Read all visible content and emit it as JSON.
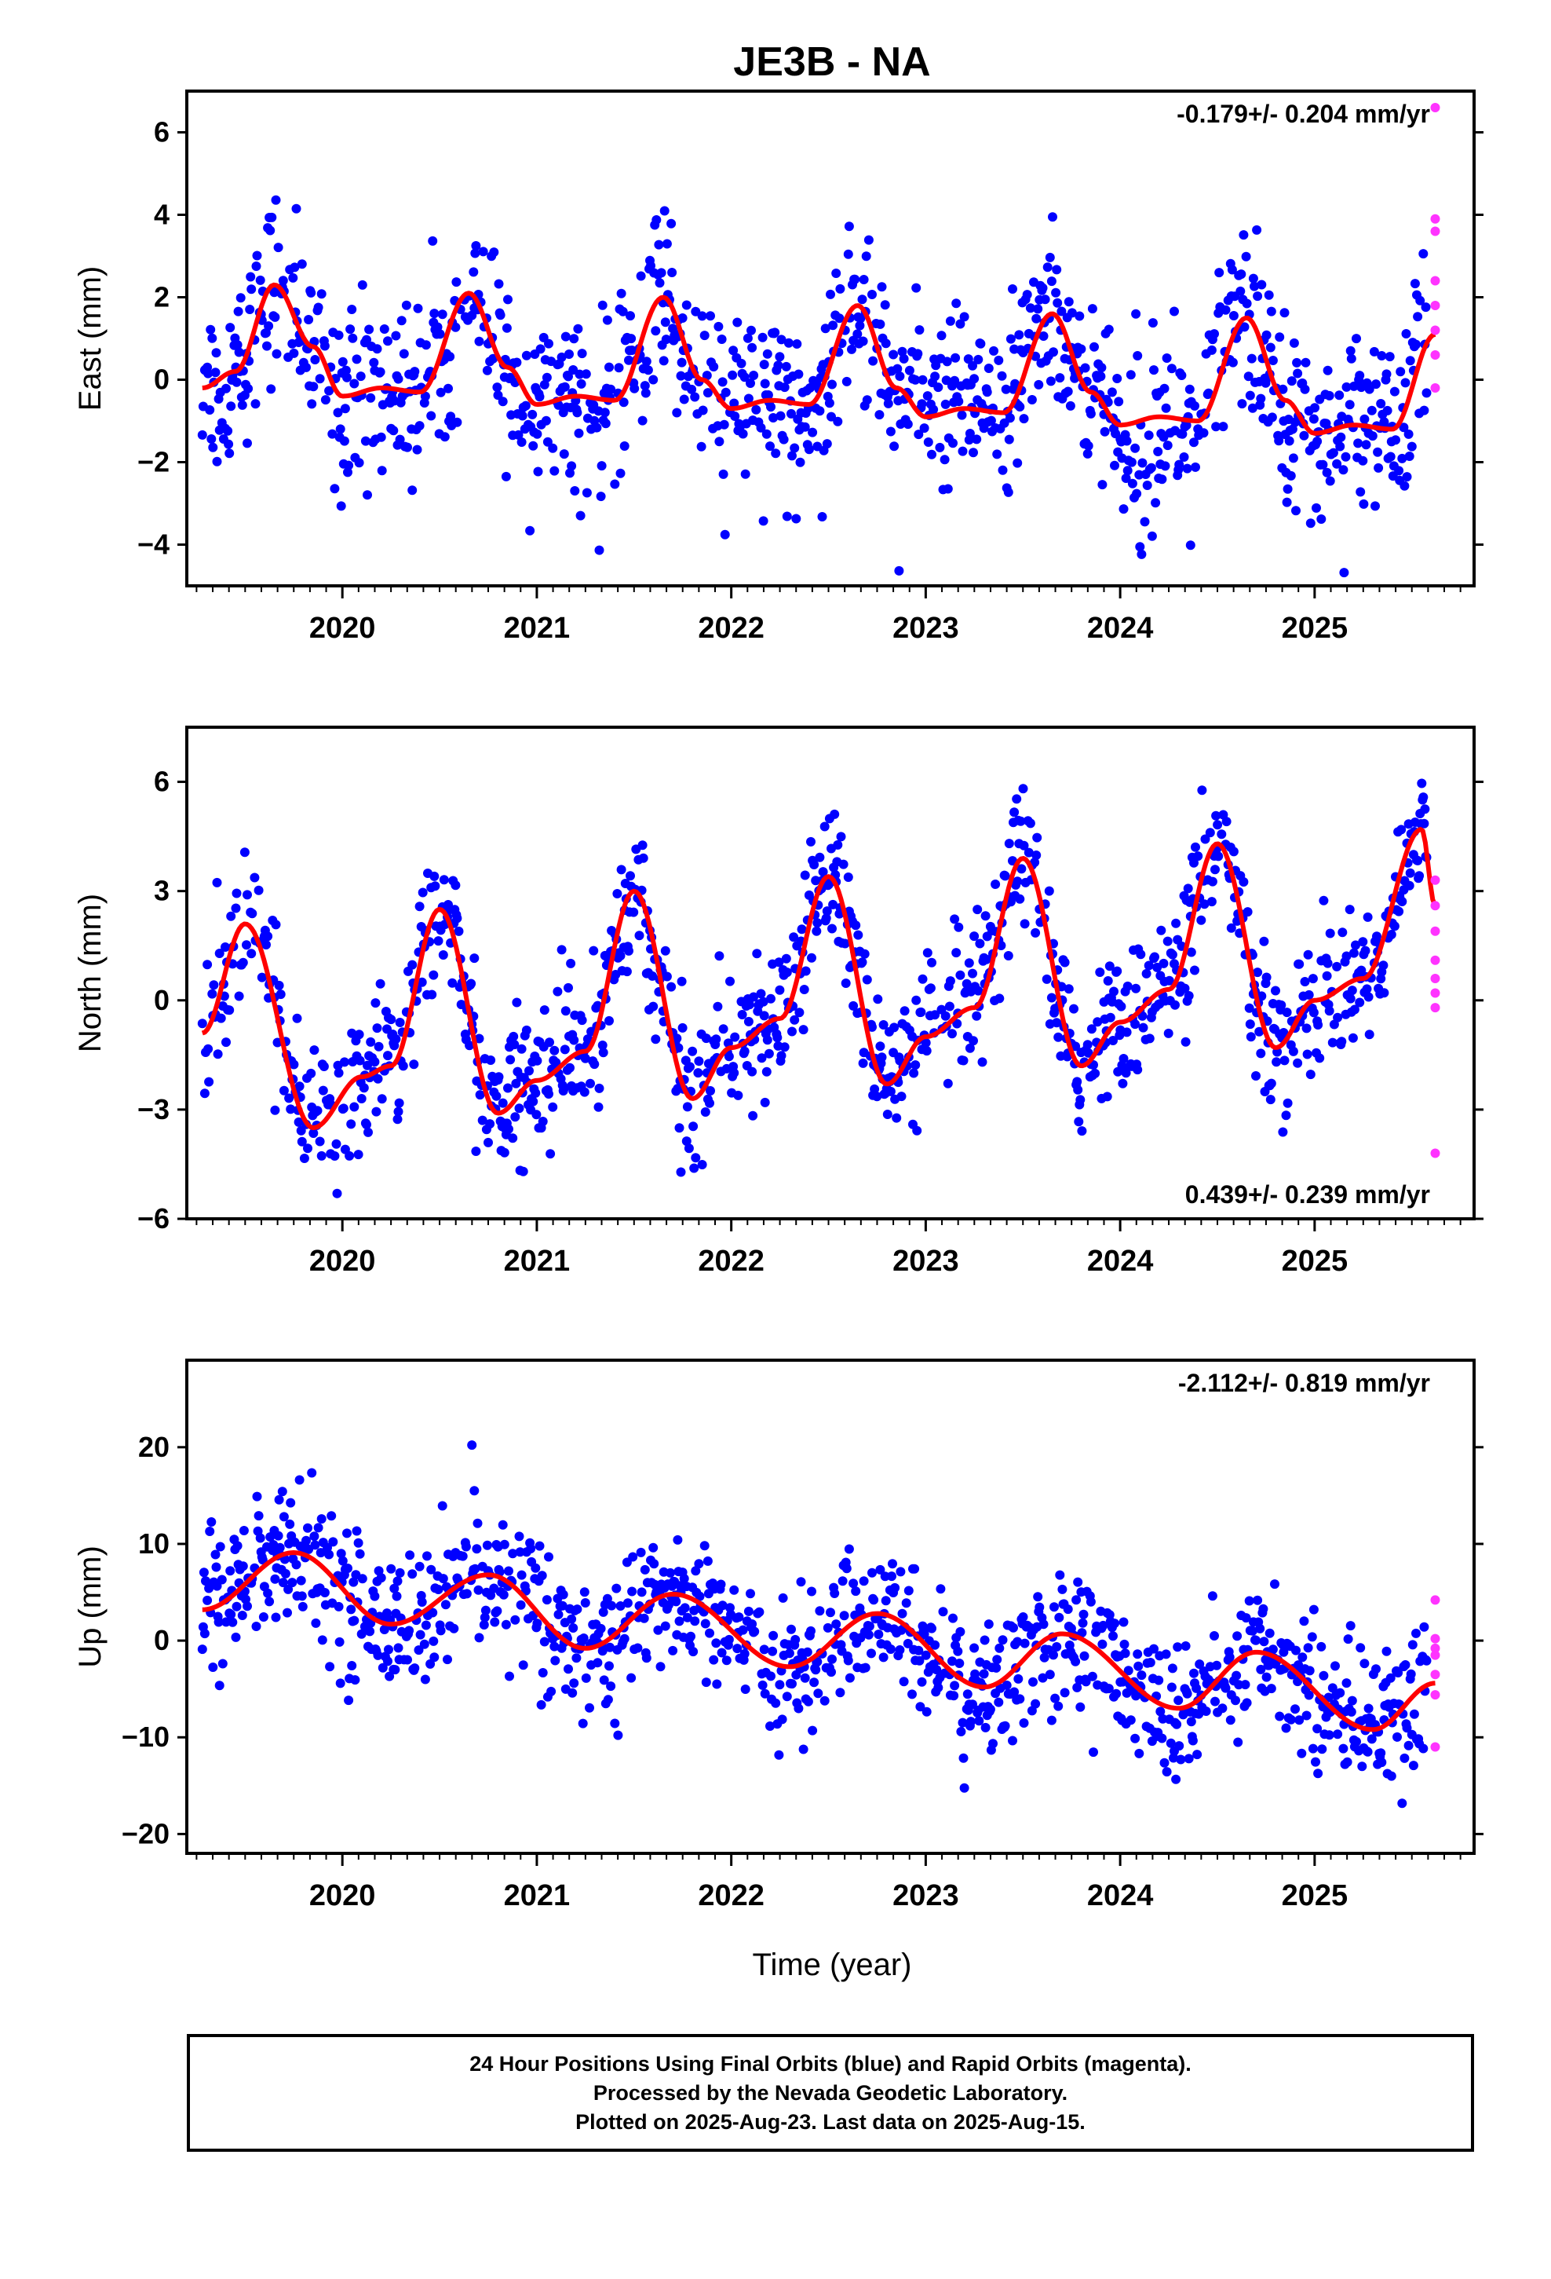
{
  "chart_data": {
    "type": "scatter",
    "title": "JE3B - NA",
    "xlabel": "Time (year)",
    "x_tick_labels": [
      "2020",
      "2021",
      "2022",
      "2023",
      "2024",
      "2025"
    ],
    "x_range": [
      2019.2,
      2025.82
    ],
    "last_data": "2025-Aug-15",
    "colors": {
      "final": "#0000ff",
      "rapid": "#ff33ff",
      "fit": "#ff0000",
      "axis": "#000000"
    },
    "panels": [
      {
        "name": "east",
        "ylabel": "East (mm)",
        "ylim": [
          -5,
          7
        ],
        "y_ticks": [
          -4,
          -2,
          0,
          2,
          4,
          6
        ],
        "y_tick_labels": [
          "−4",
          "−2",
          "0",
          "2",
          "4",
          "6"
        ],
        "rate_text": "-0.179+/- 0.204 mm/yr",
        "rate_position": "top-right",
        "seasonal": {
          "times": [
            2019.28,
            2019.45,
            2019.65,
            2019.85,
            2020.0,
            2020.2,
            2020.4,
            2020.65,
            2020.85,
            2021.0,
            2021.2,
            2021.4,
            2021.65,
            2021.85,
            2022.0,
            2022.2,
            2022.4,
            2022.65,
            2022.85,
            2023.0,
            2023.2,
            2023.4,
            2023.65,
            2023.85,
            2024.0,
            2024.2,
            2024.4,
            2024.65,
            2024.85,
            2025.0,
            2025.2,
            2025.4,
            2025.62
          ],
          "values": [
            -0.2,
            0.2,
            2.3,
            0.8,
            -0.4,
            -0.2,
            -0.3,
            2.1,
            0.3,
            -0.6,
            -0.4,
            -0.5,
            2.0,
            0.0,
            -0.7,
            -0.5,
            -0.6,
            1.8,
            -0.2,
            -0.9,
            -0.7,
            -0.8,
            1.6,
            -0.3,
            -1.1,
            -0.9,
            -1.0,
            1.5,
            -0.5,
            -1.3,
            -1.1,
            -1.2,
            1.1
          ],
          "noise_sd": 1.1
        },
        "fit": {
          "x": [
            2019.28,
            2019.45,
            2019.65,
            2019.85,
            2020.0,
            2020.2,
            2020.4,
            2020.65,
            2020.85,
            2021.0,
            2021.2,
            2021.4,
            2021.65,
            2021.85,
            2022.0,
            2022.2,
            2022.4,
            2022.65,
            2022.85,
            2023.0,
            2023.2,
            2023.4,
            2023.65,
            2023.85,
            2024.0,
            2024.2,
            2024.4,
            2024.65,
            2024.85,
            2025.0,
            2025.2,
            2025.4,
            2025.62
          ],
          "y": [
            -0.2,
            0.2,
            2.3,
            0.8,
            -0.4,
            -0.2,
            -0.3,
            2.1,
            0.3,
            -0.6,
            -0.4,
            -0.5,
            2.0,
            0.0,
            -0.7,
            -0.5,
            -0.6,
            1.8,
            -0.2,
            -0.9,
            -0.7,
            -0.8,
            1.6,
            -0.3,
            -1.1,
            -0.9,
            -1.0,
            1.5,
            -0.5,
            -1.3,
            -1.1,
            -1.2,
            1.1
          ]
        },
        "rapid_points": {
          "x": [
            2025.62,
            2025.62,
            2025.62,
            2025.62,
            2025.62,
            2025.62,
            2025.62,
            2025.62
          ],
          "y": [
            6.6,
            3.9,
            3.6,
            2.4,
            1.8,
            1.2,
            0.6,
            -0.2
          ]
        }
      },
      {
        "name": "north",
        "ylabel": "North (mm)",
        "ylim": [
          -6,
          7.5
        ],
        "y_ticks": [
          -6,
          -3,
          0,
          3,
          6
        ],
        "y_tick_labels": [
          "−6",
          "−3",
          "0",
          "3",
          "6"
        ],
        "rate_text": "0.439+/- 0.239 mm/yr",
        "rate_position": "bottom-right",
        "seasonal": {
          "times": [
            2019.28,
            2019.5,
            2019.85,
            2020.1,
            2020.25,
            2020.5,
            2020.8,
            2021.0,
            2021.25,
            2021.5,
            2021.8,
            2022.0,
            2022.25,
            2022.5,
            2022.8,
            2023.0,
            2023.25,
            2023.5,
            2023.8,
            2024.0,
            2024.25,
            2024.5,
            2024.8,
            2025.0,
            2025.25,
            2025.55,
            2025.62
          ],
          "values": [
            -0.9,
            2.1,
            -3.5,
            -2.1,
            -1.8,
            2.5,
            -3.1,
            -2.2,
            -1.4,
            3.0,
            -2.7,
            -1.3,
            -0.5,
            3.4,
            -2.3,
            -1.0,
            -0.2,
            3.9,
            -1.8,
            -0.6,
            0.3,
            4.3,
            -1.3,
            0.0,
            0.6,
            4.7,
            2.6
          ],
          "noise_sd": 0.95
        },
        "fit": {
          "x": [
            2019.28,
            2019.5,
            2019.85,
            2020.1,
            2020.25,
            2020.5,
            2020.8,
            2021.0,
            2021.25,
            2021.5,
            2021.8,
            2022.0,
            2022.25,
            2022.5,
            2022.8,
            2023.0,
            2023.25,
            2023.5,
            2023.8,
            2024.0,
            2024.25,
            2024.5,
            2024.8,
            2025.0,
            2025.25,
            2025.55,
            2025.62
          ],
          "y": [
            -0.9,
            2.1,
            -3.5,
            -2.1,
            -1.8,
            2.5,
            -3.1,
            -2.2,
            -1.4,
            3.0,
            -2.7,
            -1.3,
            -0.5,
            3.4,
            -2.3,
            -1.0,
            -0.2,
            3.9,
            -1.8,
            -0.6,
            0.3,
            4.3,
            -1.3,
            0.0,
            0.6,
            4.7,
            2.6
          ]
        },
        "rapid_points": {
          "x": [
            2025.62,
            2025.62,
            2025.62,
            2025.62,
            2025.62,
            2025.62,
            2025.62,
            2025.62
          ],
          "y": [
            3.3,
            2.6,
            1.9,
            1.1,
            0.6,
            0.2,
            -0.2,
            -4.2
          ]
        }
      },
      {
        "name": "up",
        "ylabel": "Up (mm)",
        "ylim": [
          -22,
          29
        ],
        "y_ticks": [
          -20,
          -10,
          0,
          10,
          20
        ],
        "y_tick_labels": [
          "−20",
          "−10",
          "0",
          "10",
          "20"
        ],
        "rate_text": "-2.112+/- 0.819 mm/yr",
        "rate_position": "top-right",
        "seasonal": {
          "times": [
            2019.28,
            2019.75,
            2020.25,
            2020.75,
            2021.25,
            2021.7,
            2022.3,
            2022.75,
            2023.3,
            2023.7,
            2024.3,
            2024.7,
            2025.3,
            2025.62
          ],
          "values": [
            3.2,
            9.1,
            1.7,
            6.8,
            -0.8,
            4.8,
            -2.7,
            2.8,
            -4.8,
            0.7,
            -7.0,
            -1.2,
            -9.2,
            -4.4
          ],
          "noise_sd": 3.6
        },
        "fit": {
          "x": [
            2019.28,
            2019.75,
            2020.25,
            2020.75,
            2021.25,
            2021.7,
            2022.3,
            2022.75,
            2023.3,
            2023.7,
            2024.3,
            2024.7,
            2025.3,
            2025.62
          ],
          "y": [
            3.2,
            9.1,
            1.7,
            6.8,
            -0.8,
            4.8,
            -2.7,
            2.8,
            -4.8,
            0.7,
            -7.0,
            -1.2,
            -9.2,
            -4.4
          ]
        },
        "rapid_points": {
          "x": [
            2025.62,
            2025.62,
            2025.62,
            2025.62,
            2025.62,
            2025.62,
            2025.62
          ],
          "y": [
            4.2,
            0.2,
            -0.8,
            -1.5,
            -3.5,
            -5.6,
            -11.0
          ]
        }
      }
    ]
  },
  "footer": {
    "line1": "24 Hour Positions Using Final Orbits (blue) and Rapid Orbits (magenta).",
    "line2": "Processed by the Nevada Geodetic Laboratory.",
    "line3": "Plotted on 2025-Aug-23. Last data on 2025-Aug-15."
  }
}
